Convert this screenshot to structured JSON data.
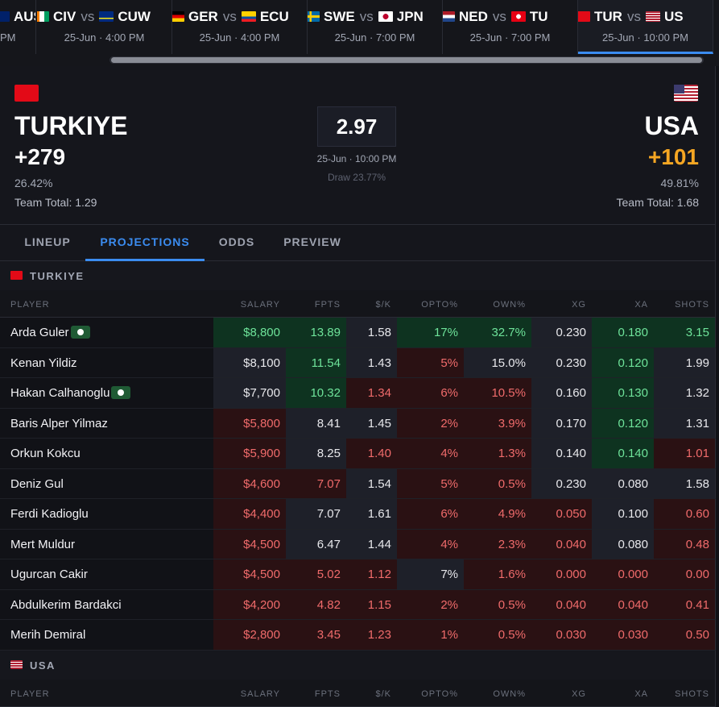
{
  "match_bar": {
    "tiles": [
      {
        "away": "AUS",
        "time": "PM"
      },
      {
        "home": "CIV",
        "vs": "vs",
        "away": "CUW",
        "time": "25-Jun · 4:00 PM"
      },
      {
        "home": "GER",
        "vs": "vs",
        "away": "ECU",
        "time": "25-Jun · 4:00 PM"
      },
      {
        "home": "SWE",
        "vs": "vs",
        "away": "JPN",
        "time": "25-Jun · 7:00 PM"
      },
      {
        "home": "NED",
        "vs": "vs",
        "away": "TU",
        "time": "25-Jun · 7:00 PM"
      },
      {
        "home": "TUR",
        "vs": "vs",
        "away": "US",
        "time": "25-Jun · 10:00 PM",
        "active": true
      }
    ]
  },
  "matchup": {
    "home": {
      "name": "TURKIYE",
      "odds": "+279",
      "pct": "26.42%",
      "team_total": "Team Total: 1.29"
    },
    "center": {
      "total": "2.97",
      "time": "25-Jun · 10:00 PM",
      "draw": "Draw 23.77%"
    },
    "away": {
      "name": "USA",
      "odds": "+101",
      "pct": "49.81%",
      "team_total": "Team Total: 1.68"
    }
  },
  "tabs": {
    "items": [
      "LINEUP",
      "PROJECTIONS",
      "ODDS",
      "PREVIEW"
    ],
    "active": 1
  },
  "sections": [
    {
      "team": "TURKIYE",
      "columns": [
        "PLAYER",
        "SALARY",
        "FPTS",
        "$/K",
        "OPTO%",
        "OWN%",
        "XG",
        "XA",
        "SHOTS"
      ],
      "rows": [
        {
          "player": "Arda Guler",
          "badge": true,
          "cells": [
            "$8,800",
            "13.89",
            "1.58",
            "17%",
            "32.7%",
            "0.230",
            "0.180",
            "3.15"
          ],
          "colors": [
            "#0e3320",
            "#0e3320",
            "#1e2029",
            "#0e3320",
            "#0e3320",
            "#1e2029",
            "#0e3320",
            "#0e3320"
          ]
        },
        {
          "player": "Kenan Yildiz",
          "cells": [
            "$8,100",
            "11.54",
            "1.43",
            "5%",
            "15.0%",
            "0.230",
            "0.120",
            "1.99"
          ],
          "colors": [
            "#1e2029",
            "#0e3320",
            "#1e2029",
            "#2a1113",
            "#1e2029",
            "#1e2029",
            "#0e3320",
            "#1e2029"
          ]
        },
        {
          "player": "Hakan Calhanoglu",
          "badge": true,
          "cells": [
            "$7,700",
            "10.32",
            "1.34",
            "6%",
            "10.5%",
            "0.160",
            "0.130",
            "1.32"
          ],
          "colors": [
            "#1e2029",
            "#0e3320",
            "#2a1113",
            "#2a1113",
            "#2a1113",
            "#1e2029",
            "#0e3320",
            "#1e2029"
          ]
        },
        {
          "player": "Baris Alper Yilmaz",
          "cells": [
            "$5,800",
            "8.41",
            "1.45",
            "2%",
            "3.9%",
            "0.170",
            "0.120",
            "1.31"
          ],
          "colors": [
            "#2a1113",
            "#1e2029",
            "#1e2029",
            "#2a1113",
            "#2a1113",
            "#1e2029",
            "#0e3320",
            "#1e2029"
          ]
        },
        {
          "player": "Orkun Kokcu",
          "cells": [
            "$5,900",
            "8.25",
            "1.40",
            "4%",
            "1.3%",
            "0.140",
            "0.140",
            "1.01"
          ],
          "colors": [
            "#2a1113",
            "#1e2029",
            "#2a1113",
            "#2a1113",
            "#2a1113",
            "#1e2029",
            "#0e3320",
            "#2a1113"
          ]
        },
        {
          "player": "Deniz Gul",
          "cells": [
            "$4,600",
            "7.07",
            "1.54",
            "5%",
            "0.5%",
            "0.230",
            "0.080",
            "1.58"
          ],
          "colors": [
            "#2a1113",
            "#2a1113",
            "#1e2029",
            "#2a1113",
            "#2a1113",
            "#1e2029",
            "#1e2029",
            "#1e2029"
          ]
        },
        {
          "player": "Ferdi Kadioglu",
          "cells": [
            "$4,400",
            "7.07",
            "1.61",
            "6%",
            "4.9%",
            "0.050",
            "0.100",
            "0.60"
          ],
          "colors": [
            "#2a1113",
            "#1e2029",
            "#1e2029",
            "#2a1113",
            "#2a1113",
            "#2a1113",
            "#1e2029",
            "#2a1113"
          ]
        },
        {
          "player": "Mert Muldur",
          "cells": [
            "$4,500",
            "6.47",
            "1.44",
            "4%",
            "2.3%",
            "0.040",
            "0.080",
            "0.48"
          ],
          "colors": [
            "#2a1113",
            "#1e2029",
            "#1e2029",
            "#2a1113",
            "#2a1113",
            "#2a1113",
            "#1e2029",
            "#2a1113"
          ]
        },
        {
          "player": "Ugurcan Cakir",
          "cells": [
            "$4,500",
            "5.02",
            "1.12",
            "7%",
            "1.6%",
            "0.000",
            "0.000",
            "0.00"
          ],
          "colors": [
            "#2a1113",
            "#2a1113",
            "#2a1113",
            "#1e2029",
            "#2a1113",
            "#2a1113",
            "#2a1113",
            "#2a1113"
          ]
        },
        {
          "player": "Abdulkerim Bardakci",
          "cells": [
            "$4,200",
            "4.82",
            "1.15",
            "2%",
            "0.5%",
            "0.040",
            "0.040",
            "0.41"
          ],
          "colors": [
            "#2a1113",
            "#2a1113",
            "#2a1113",
            "#2a1113",
            "#2a1113",
            "#2a1113",
            "#2a1113",
            "#2a1113"
          ]
        },
        {
          "player": "Merih Demiral",
          "cells": [
            "$2,800",
            "3.45",
            "1.23",
            "1%",
            "0.5%",
            "0.030",
            "0.030",
            "0.50"
          ],
          "colors": [
            "#2a1113",
            "#2a1113",
            "#2a1113",
            "#2a1113",
            "#2a1113",
            "#2a1113",
            "#2a1113",
            "#2a1113"
          ]
        }
      ]
    },
    {
      "team": "USA",
      "columns": [
        "PLAYER",
        "SALARY",
        "FPTS",
        "$/K",
        "OPTO%",
        "OWN%",
        "XG",
        "XA",
        "SHOTS"
      ]
    }
  ]
}
